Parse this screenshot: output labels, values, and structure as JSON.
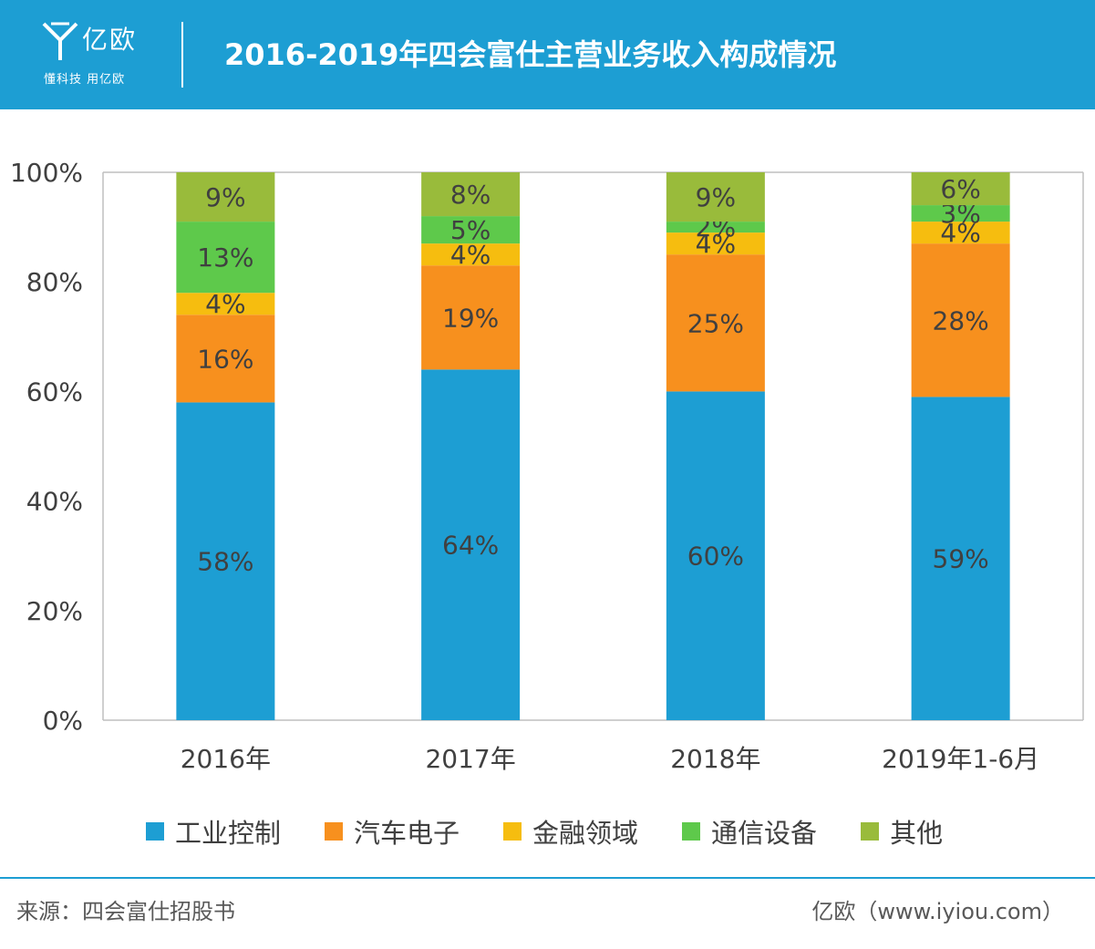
{
  "header": {
    "logo_name": "亿欧",
    "logo_slogan": "懂科技 用亿欧",
    "title": "2016-2019年四会富仕主营业务收入构成情况"
  },
  "chart_data": {
    "type": "bar",
    "stacked": true,
    "title": "2016-2019年四会富仕主营业务收入构成情况",
    "categories": [
      "2016年",
      "2017年",
      "2018年",
      "2019年1-6月"
    ],
    "series": [
      {
        "name": "工业控制",
        "color": "#1d9ed3",
        "values": [
          58,
          64,
          60,
          59
        ]
      },
      {
        "name": "汽车电子",
        "color": "#f7901e",
        "values": [
          16,
          19,
          25,
          28
        ]
      },
      {
        "name": "金融领域",
        "color": "#f6bd0f",
        "values": [
          4,
          4,
          4,
          4
        ]
      },
      {
        "name": "通信设备",
        "color": "#5ec94b",
        "values": [
          13,
          5,
          2,
          3
        ]
      },
      {
        "name": "其他",
        "color": "#99bb3b",
        "values": [
          9,
          8,
          9,
          6
        ]
      }
    ],
    "y_ticks": [
      "0%",
      "20%",
      "40%",
      "60%",
      "80%",
      "100%"
    ],
    "ylim": [
      0,
      100
    ],
    "legend_position": "bottom",
    "grid": false
  },
  "footer": {
    "source": "来源：四会富仕招股书",
    "brand": "亿欧（www.iyiou.com）"
  }
}
